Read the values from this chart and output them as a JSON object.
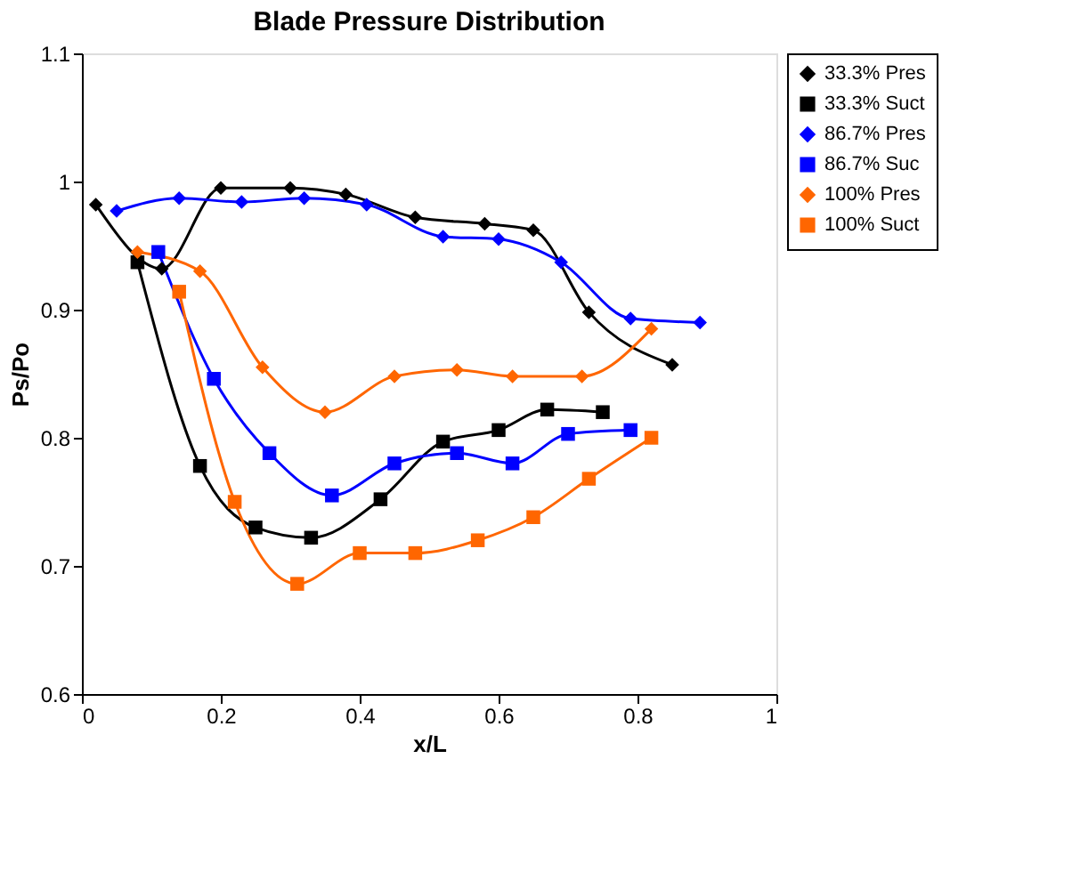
{
  "chart_data": {
    "type": "line",
    "title": "Blade Pressure Distribution",
    "xlabel": "x/L",
    "ylabel": "Ps/Po",
    "xlim": [
      0,
      1
    ],
    "xticks": [
      0,
      0.2,
      0.4,
      0.6,
      0.8,
      1
    ],
    "ylim": [
      0.6,
      1.1
    ],
    "yticks": [
      0.6,
      0.7,
      0.8,
      0.9,
      1,
      1.1
    ],
    "grid": false,
    "legend": "right",
    "series": [
      {
        "name": "33.3% Pres",
        "color": "#000000",
        "marker": "diamond",
        "x": [
          0.02,
          0.115,
          0.2,
          0.3,
          0.38,
          0.48,
          0.58,
          0.65,
          0.73,
          0.85
        ],
        "values": [
          0.982,
          0.932,
          0.995,
          0.995,
          0.99,
          0.972,
          0.967,
          0.962,
          0.898,
          0.857
        ]
      },
      {
        "name": "33.3% Suct",
        "color": "#000000",
        "marker": "square",
        "x": [
          0.08,
          0.17,
          0.25,
          0.33,
          0.43,
          0.52,
          0.6,
          0.67,
          0.75
        ],
        "values": [
          0.937,
          0.778,
          0.73,
          0.722,
          0.752,
          0.797,
          0.806,
          0.822,
          0.82
        ]
      },
      {
        "name": "86.7% Pres",
        "color": "#0000ff",
        "marker": "diamond",
        "x": [
          0.05,
          0.14,
          0.23,
          0.32,
          0.41,
          0.52,
          0.6,
          0.69,
          0.79,
          0.89
        ],
        "values": [
          0.977,
          0.987,
          0.984,
          0.987,
          0.982,
          0.957,
          0.955,
          0.937,
          0.893,
          0.89
        ]
      },
      {
        "name": "86.7% Suc",
        "color": "#0000ff",
        "marker": "square",
        "x": [
          0.11,
          0.19,
          0.27,
          0.36,
          0.45,
          0.54,
          0.62,
          0.7,
          0.79
        ],
        "values": [
          0.945,
          0.846,
          0.788,
          0.755,
          0.78,
          0.788,
          0.78,
          0.803,
          0.806
        ]
      },
      {
        "name": "100% Pres",
        "color": "#ff6600",
        "marker": "diamond",
        "x": [
          0.08,
          0.17,
          0.26,
          0.35,
          0.45,
          0.54,
          0.62,
          0.72,
          0.82
        ],
        "values": [
          0.945,
          0.93,
          0.855,
          0.82,
          0.848,
          0.853,
          0.848,
          0.848,
          0.885
        ]
      },
      {
        "name": "100% Suct",
        "color": "#ff6600",
        "marker": "square",
        "x": [
          0.14,
          0.22,
          0.31,
          0.4,
          0.48,
          0.57,
          0.65,
          0.73,
          0.82
        ],
        "values": [
          0.914,
          0.75,
          0.686,
          0.71,
          0.71,
          0.72,
          0.738,
          0.768,
          0.8
        ]
      }
    ]
  }
}
